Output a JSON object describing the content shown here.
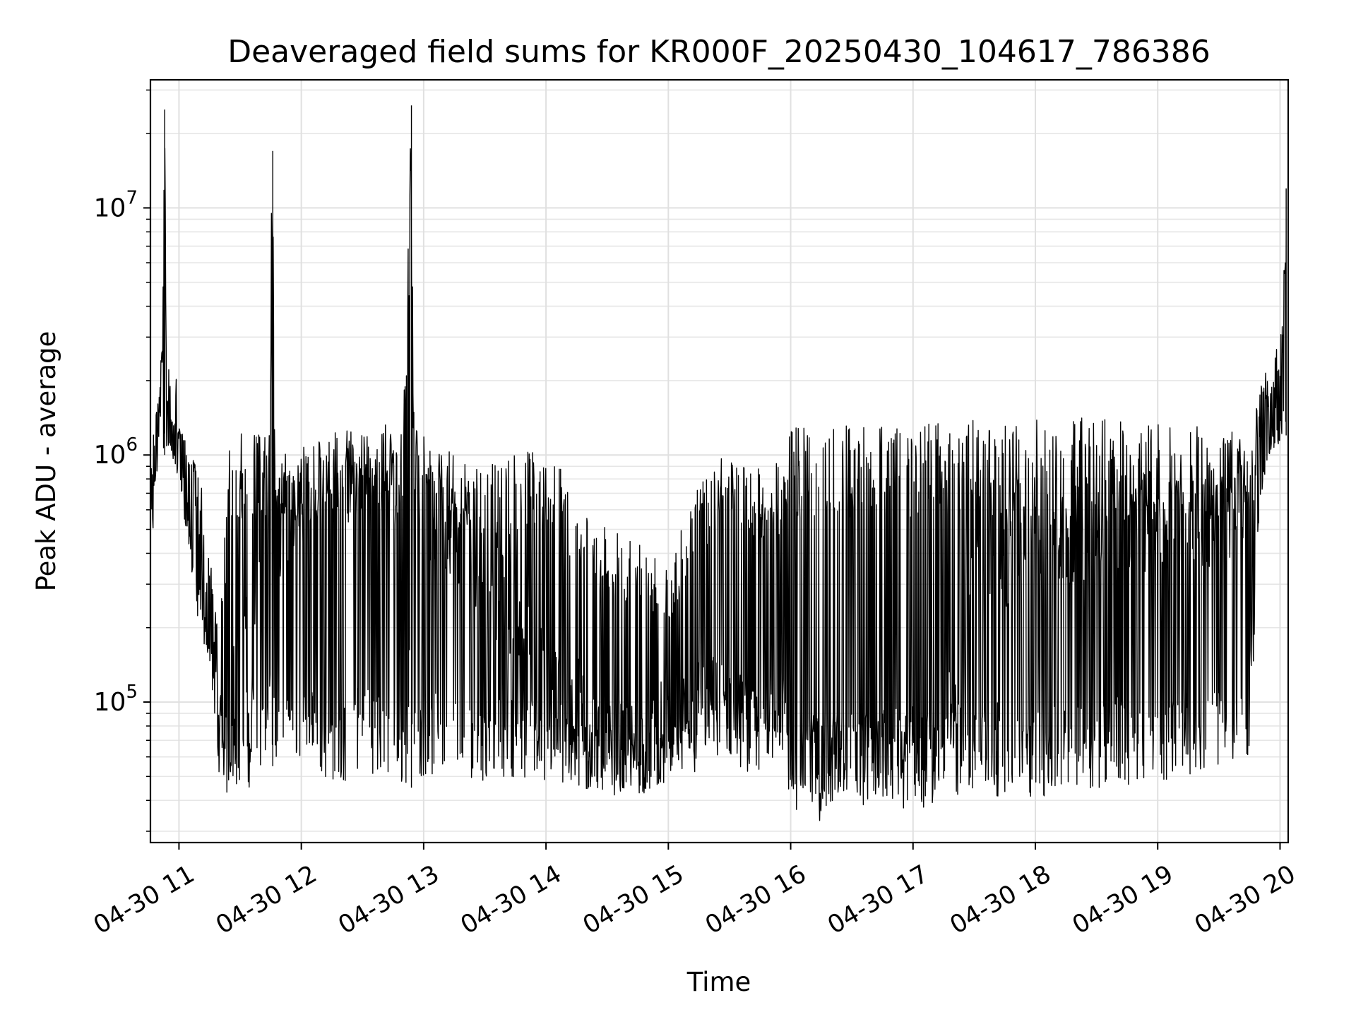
{
  "chart_data": {
    "type": "line",
    "title": "Deaveraged field sums for KR000F_20250430_104617_786386",
    "xlabel": "Time",
    "ylabel": "Peak ADU - average",
    "yscale": "log",
    "ylim": [
      27000,
      33000000
    ],
    "xlim": [
      "2025-04-30T10:46:00",
      "2025-04-30T20:04:00"
    ],
    "grid": true,
    "series_color": "#000000",
    "xticks": [
      {
        "t": "2025-04-30T11:00:00",
        "label": "04-30 11"
      },
      {
        "t": "2025-04-30T12:00:00",
        "label": "04-30 12"
      },
      {
        "t": "2025-04-30T13:00:00",
        "label": "04-30 13"
      },
      {
        "t": "2025-04-30T14:00:00",
        "label": "04-30 14"
      },
      {
        "t": "2025-04-30T15:00:00",
        "label": "04-30 15"
      },
      {
        "t": "2025-04-30T16:00:00",
        "label": "04-30 16"
      },
      {
        "t": "2025-04-30T17:00:00",
        "label": "04-30 17"
      },
      {
        "t": "2025-04-30T18:00:00",
        "label": "04-30 18"
      },
      {
        "t": "2025-04-30T19:00:00",
        "label": "04-30 19"
      },
      {
        "t": "2025-04-30T20:00:00",
        "label": "04-30 20"
      }
    ],
    "yticks": [
      {
        "value": 100000,
        "base": "10",
        "exp": "5"
      },
      {
        "value": 1000000,
        "base": "10",
        "exp": "6"
      },
      {
        "value": 10000000,
        "base": "10",
        "exp": "7"
      }
    ],
    "series": [
      {
        "x": [
          "2025-04-30T10:46:00",
          "2025-04-30T10:48:00",
          "2025-04-30T10:50:00",
          "2025-04-30T10:52:00",
          "2025-04-30T10:53:00",
          "2025-04-30T10:54:00",
          "2025-04-30T10:55:00",
          "2025-04-30T10:56:00",
          "2025-04-30T10:58:00",
          "2025-04-30T11:00:00",
          "2025-04-30T11:05:00",
          "2025-04-30T11:10:00",
          "2025-04-30T11:15:00",
          "2025-04-30T11:20:00",
          "2025-04-30T11:25:00",
          "2025-04-30T11:30:00",
          "2025-04-30T11:35:00",
          "2025-04-30T11:40:00",
          "2025-04-30T11:44:00",
          "2025-04-30T11:46:00",
          "2025-04-30T11:47:00",
          "2025-04-30T11:50:00",
          "2025-04-30T12:00:00",
          "2025-04-30T12:10:00",
          "2025-04-30T12:20:00",
          "2025-04-30T12:30:00",
          "2025-04-30T12:40:00",
          "2025-04-30T12:50:00",
          "2025-04-30T12:54:00",
          "2025-04-30T12:55:00",
          "2025-04-30T12:56:00",
          "2025-04-30T13:00:00",
          "2025-04-30T13:15:00",
          "2025-04-30T13:30:00",
          "2025-04-30T13:45:00",
          "2025-04-30T14:00:00",
          "2025-04-30T14:15:00",
          "2025-04-30T14:30:00",
          "2025-04-30T14:45:00",
          "2025-04-30T15:00:00",
          "2025-04-30T15:15:00",
          "2025-04-30T15:30:00",
          "2025-04-30T15:45:00",
          "2025-04-30T15:50:00",
          "2025-04-30T16:00:00",
          "2025-04-30T16:15:00",
          "2025-04-30T16:30:00",
          "2025-04-30T16:45:00",
          "2025-04-30T17:00:00",
          "2025-04-30T17:15:00",
          "2025-04-30T17:30:00",
          "2025-04-30T17:45:00",
          "2025-04-30T18:00:00",
          "2025-04-30T18:15:00",
          "2025-04-30T18:30:00",
          "2025-04-30T18:45:00",
          "2025-04-30T19:00:00",
          "2025-04-30T19:15:00",
          "2025-04-30T19:30:00",
          "2025-04-30T19:45:00",
          "2025-04-30T19:50:00",
          "2025-04-30T19:55:00",
          "2025-04-30T20:00:00",
          "2025-04-30T20:03:00"
        ],
        "y": [
          500000,
          800000,
          1500000,
          3000000,
          25000000,
          1200000,
          2000000,
          1400000,
          1300000,
          1200000,
          700000,
          300000,
          200000,
          80000,
          60000,
          600000,
          70000,
          800000,
          700000,
          17000000,
          600000,
          500000,
          700000,
          800000,
          800000,
          850000,
          900000,
          700000,
          26000000,
          1000000,
          900000,
          600000,
          500000,
          350000,
          200000,
          120000,
          100000,
          60000,
          65000,
          80000,
          100000,
          95000,
          75000,
          180000,
          55000,
          50000,
          55000,
          60000,
          55000,
          60000,
          400000,
          380000,
          420000,
          450000,
          500000,
          520000,
          550000,
          500000,
          550000,
          700000,
          1500000,
          1600000,
          1800000,
          12000000
        ],
        "band_min": [
          450000,
          700000,
          1100000,
          1000000,
          1000000,
          1000000,
          1000000,
          1000000,
          900000,
          800000,
          400000,
          180000,
          150000,
          48000,
          45000,
          45000,
          45000,
          50000,
          50000,
          55000,
          55000,
          55000,
          60000,
          50000,
          45000,
          55000,
          48000,
          45000,
          45000,
          48000,
          48000,
          50000,
          50000,
          48000,
          50000,
          45000,
          42000,
          42000,
          42000,
          45000,
          50000,
          60000,
          55000,
          60000,
          40000,
          38000,
          38000,
          40000,
          40000,
          40000,
          40000,
          42000,
          40000,
          42000,
          45000,
          45000,
          48000,
          50000,
          55000,
          60000,
          600000,
          1000000,
          1100000,
          1200000
        ],
        "band_max": [
          900000,
          1400000,
          1800000,
          3100000,
          25000000,
          1500000,
          2200000,
          1500000,
          1400000,
          1300000,
          1200000,
          900000,
          400000,
          200000,
          1200000,
          1250000,
          1250000,
          1200000,
          1200000,
          17000000,
          1200000,
          1150000,
          1100000,
          1150000,
          1200000,
          1250000,
          1300000,
          1300000,
          26000000,
          1300000,
          1300000,
          1200000,
          1000000,
          900000,
          1000000,
          1100000,
          700000,
          500000,
          450000,
          350000,
          800000,
          1050000,
          900000,
          800000,
          1300000,
          1300000,
          1320000,
          1330000,
          1350000,
          1380000,
          1380000,
          1380000,
          1400000,
          1420000,
          1420000,
          1400000,
          1380000,
          1350000,
          1200000,
          1300000,
          1900000,
          2100000,
          2500000,
          12000000
        ]
      }
    ]
  }
}
